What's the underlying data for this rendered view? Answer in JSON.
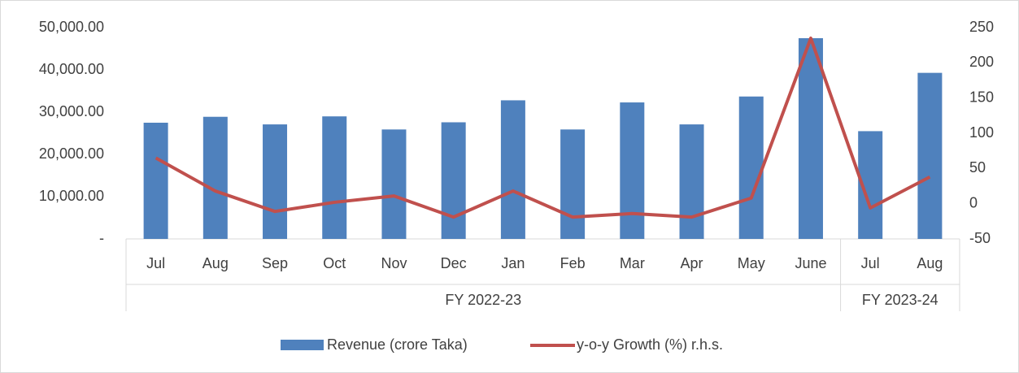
{
  "chart_data": {
    "type": "bar-line",
    "categories": [
      "Jul",
      "Aug",
      "Sep",
      "Oct",
      "Nov",
      "Dec",
      "Jan",
      "Feb",
      "Mar",
      "Apr",
      "May",
      "June",
      "Jul",
      "Aug"
    ],
    "groups": [
      {
        "name": "FY 2022-23",
        "size": 12
      },
      {
        "name": "FY 2023-24",
        "size": 2
      }
    ],
    "series": [
      {
        "name": "Revenue (crore Taka)",
        "type": "bar",
        "color": "#4f81bd",
        "values": [
          27500,
          28900,
          27100,
          29000,
          25900,
          27600,
          32800,
          25900,
          32300,
          27100,
          33700,
          47500,
          25500,
          39300
        ]
      },
      {
        "name": "y-o-y Growth (%) r.h.s.",
        "type": "line",
        "axis": "y2",
        "color": "#c0504d",
        "values": [
          65,
          18,
          -11,
          2,
          11,
          -19,
          18,
          -19,
          -14,
          -19,
          8,
          235,
          -6,
          38
        ]
      }
    ],
    "ylim": [
      0,
      50000
    ],
    "yticks": [
      {
        "value": 0,
        "label": "-"
      },
      {
        "value": 10000,
        "label": "10,000.00"
      },
      {
        "value": 20000,
        "label": "20,000.00"
      },
      {
        "value": 30000,
        "label": "30,000.00"
      },
      {
        "value": 40000,
        "label": "40,000.00"
      },
      {
        "value": 50000,
        "label": "50,000.00"
      }
    ],
    "y2lim": [
      -50,
      250
    ],
    "y2ticks": [
      -50,
      0,
      50,
      100,
      150,
      200,
      250
    ],
    "legend": "bottom"
  }
}
